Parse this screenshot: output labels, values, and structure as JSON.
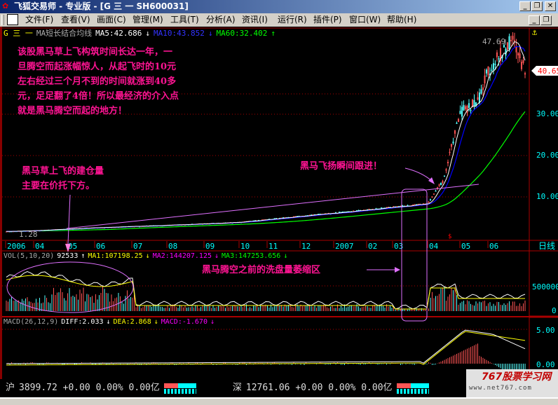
{
  "window": {
    "title": "飞狐交易师 - 专业版 - [G 三  一 SH600031]",
    "minimize": "_",
    "restore": "❐",
    "close": "✕"
  },
  "menu": [
    "文件(F)",
    "查看(V)",
    "画面(C)",
    "管理(M)",
    "工具(T)",
    "分析(A)",
    "资讯(I)",
    "运行(R)",
    "插件(P)",
    "窗口(W)",
    "帮助(H)"
  ],
  "main_panel": {
    "stock": "G 三  一",
    "indicator": "MA短长结合均线",
    "ma5": "MA5:42.686",
    "ma10": "MA10:43.852",
    "ma60": "MA60:32.402",
    "ma5_dir": "↓",
    "ma10_dir": "↓",
    "ma60_dir": "↑",
    "high_label": "47.69",
    "low_label": "1.28",
    "current_price": "40.65",
    "y_ticks": [
      "30.00",
      "20.00",
      "10.00"
    ],
    "period": "日线"
  },
  "date_axis": [
    "2006",
    "04",
    "05",
    "06",
    "07",
    "08",
    "09",
    "10",
    "11",
    "12",
    "2007",
    "02",
    "03",
    "04",
    "05",
    "06"
  ],
  "vol_panel": {
    "name": "VOL(5,10,20)",
    "vol": "92533",
    "vol_dir": "↑",
    "ma1": "MA1:107198.25",
    "ma2": "MA2:144207.125",
    "ma3": "MA3:147253.656",
    "ma1_dir": "↓",
    "ma2_dir": "↓",
    "ma3_dir": "↓",
    "y_ticks": [
      "500000",
      "0"
    ]
  },
  "macd_panel": {
    "name": "MACD(26,12,9)",
    "diff": "DIFF:2.033",
    "dea": "DEA:2.868",
    "macd": "MACD:-1.670",
    "diff_dir": "↓",
    "dea_dir": "↓",
    "macd_dir": "↓",
    "y_ticks": [
      "5.00",
      "0.00"
    ]
  },
  "annotations": {
    "main": "该股黑马草上飞构筑时间长达一年，一\n旦腾空而起涨幅惊人，从起飞时的10元\n左右经过三个月不到的时间就涨到40多\n元，足足翻了4倍！所以最经济的介入点\n就是黑马腾空而起的地方！",
    "build": "黑马草上飞的建仓量\n主要在价托下方。",
    "follow": "黑马飞扬瞬间跟进！",
    "shrink": "黑马腾空之前的洗盘量萎缩区"
  },
  "status": {
    "sh_label": "沪",
    "sh": "3899.72 +0.00 0.00% 0.00亿",
    "sz_label": "深",
    "sz": "12761.06 +0.00 0.00% 0.00亿"
  },
  "watermark": {
    "name": "767股票学习网",
    "url": "www.net767.com"
  },
  "colors": {
    "up": "#ff5454",
    "down": "#54ffff",
    "ma5": "#ffffff",
    "ma10": "#0000ff",
    "ma60": "#00ff00",
    "annotation": "#ff1493",
    "axis": "#aa0000",
    "tick": "#00ffff"
  },
  "chart_data": {
    "type": "candlestick",
    "price_path": [
      [
        "2006-01",
        1.3
      ],
      [
        "2006-04",
        1.5
      ],
      [
        "2006-06",
        2.2
      ],
      [
        "2006-08",
        2.8
      ],
      [
        "2006-10",
        3.5
      ],
      [
        "2006-12",
        5.0
      ],
      [
        "2007-02",
        6.5
      ],
      [
        "2007-03",
        7.2
      ],
      [
        "2007-04",
        8.0
      ],
      [
        "2007-04-15",
        14
      ],
      [
        "2007-05",
        30
      ],
      [
        "2007-05-20",
        33
      ],
      [
        "2007-06",
        40
      ],
      [
        "2007-06-20",
        47.69
      ],
      [
        "2007-07",
        40.65
      ]
    ],
    "ylim": [
      0,
      50
    ]
  }
}
